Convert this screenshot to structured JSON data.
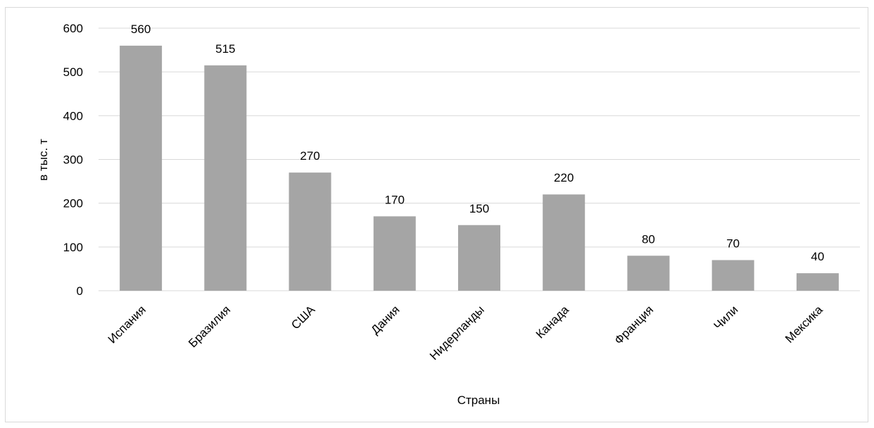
{
  "chart_data": {
    "type": "bar",
    "title": "",
    "xlabel": "Страны",
    "ylabel": "в тыс. т",
    "categories": [
      "Испания",
      "Бразилия",
      "США",
      "Дания",
      "Нидерланды",
      "Канада",
      "Франция",
      "Чили",
      "Мексика"
    ],
    "values": [
      560,
      515,
      270,
      170,
      150,
      220,
      80,
      70,
      40
    ],
    "ylim": [
      0,
      600
    ],
    "yticks": [
      0,
      100,
      200,
      300,
      400,
      500,
      600
    ],
    "grid": true,
    "legend": "none",
    "bar_color": "#a5a5a5",
    "grid_color": "#d9d9d9"
  }
}
